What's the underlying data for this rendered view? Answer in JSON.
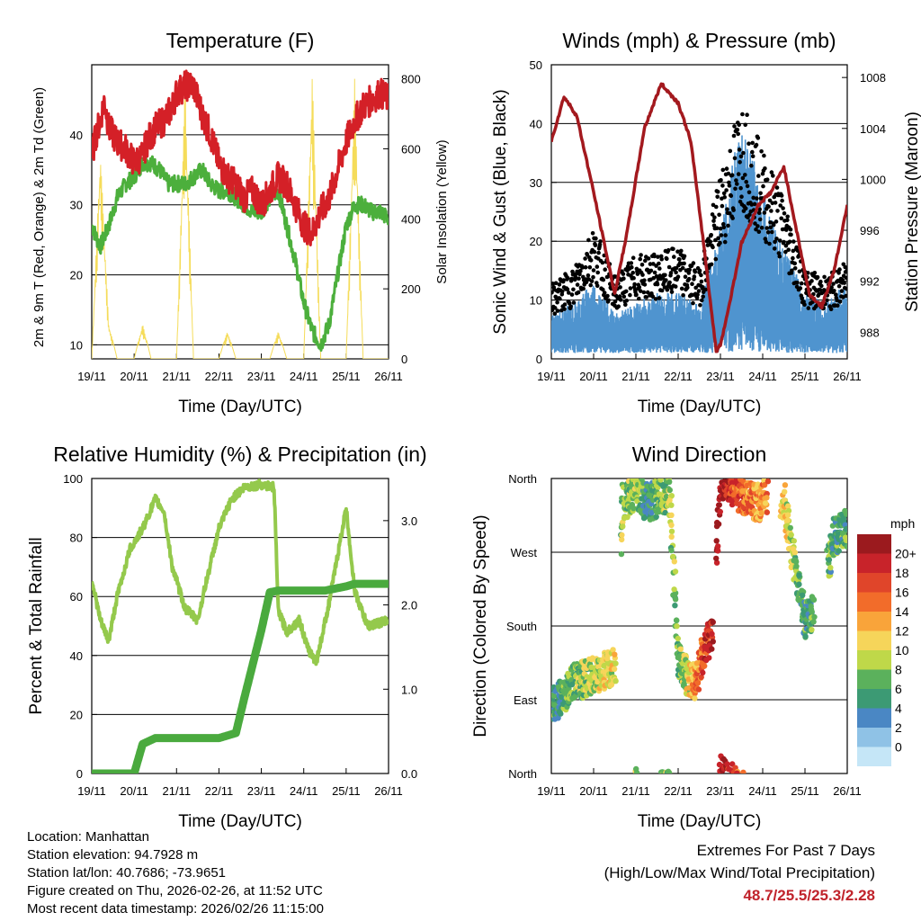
{
  "chart_data": [
    {
      "id": "temperature",
      "type": "line",
      "title": "Temperature (F)",
      "xlabel": "Time (Day/UTC)",
      "ylabel": "2m & 9m T (Red, Orange) & 2m Td (Green)",
      "y2label": "Solar Insolation (Yellow)",
      "x_ticks": [
        "19/11",
        "20/11",
        "21/11",
        "22/11",
        "23/11",
        "24/11",
        "25/11",
        "26/11"
      ],
      "ylim": [
        8,
        50
      ],
      "y_ticks": [
        10,
        20,
        30,
        40
      ],
      "y2lim": [
        0,
        840
      ],
      "y2_ticks": [
        0,
        200,
        400,
        600,
        800
      ],
      "colors": {
        "temp": "#d42027",
        "dewpoint": "#4caf3c",
        "solar": "#f5dc5a"
      },
      "series": [
        {
          "name": "2m/9m T",
          "color_key": "temp",
          "x": [
            0,
            0.1,
            0.2,
            0.3,
            0.4,
            0.5,
            0.6,
            0.8,
            1.0,
            1.2,
            1.3,
            1.5,
            1.7,
            1.9,
            2.0,
            2.2,
            2.4,
            2.6,
            2.8,
            3.0,
            3.2,
            3.4,
            3.6,
            3.8,
            4.0,
            4.2,
            4.4,
            4.6,
            4.8,
            5.0,
            5.2,
            5.4,
            5.6,
            5.8,
            6.0,
            6.2,
            6.4,
            6.6,
            6.8,
            7.0
          ],
          "values": [
            37,
            40,
            42,
            45,
            41,
            40,
            39,
            38,
            36,
            37,
            39,
            41,
            42,
            44,
            46,
            47,
            47,
            43,
            40,
            36,
            34,
            33,
            31,
            32,
            30,
            32,
            34,
            33,
            30,
            27,
            26,
            29,
            31,
            35,
            39,
            42,
            44,
            45,
            46,
            45
          ]
        },
        {
          "name": "2m Td",
          "color_key": "dewpoint",
          "x": [
            0,
            0.2,
            0.4,
            0.6,
            0.8,
            1.0,
            1.2,
            1.4,
            1.6,
            1.8,
            2.0,
            2.2,
            2.4,
            2.6,
            2.8,
            3.0,
            3.2,
            3.4,
            3.6,
            3.8,
            4.0,
            4.2,
            4.4,
            4.6,
            4.8,
            5.0,
            5.2,
            5.4,
            5.6,
            5.8,
            6.0,
            6.2,
            6.4,
            6.6,
            6.8,
            7.0
          ],
          "values": [
            27,
            24,
            27,
            31,
            33,
            34,
            36,
            36,
            35,
            33,
            33,
            33,
            34,
            35,
            33,
            32,
            32,
            31,
            30,
            29,
            29,
            31,
            32,
            27,
            22,
            16,
            12,
            10,
            13,
            20,
            27,
            30,
            30,
            29,
            29,
            28
          ]
        },
        {
          "name": "Solar Insolation",
          "color_key": "solar",
          "axis": "y2",
          "x": [
            0,
            0.2,
            0.4,
            0.6,
            0.8,
            1.0,
            1.2,
            1.4,
            1.6,
            1.8,
            2.0,
            2.2,
            2.4,
            2.6,
            2.8,
            3.0,
            3.2,
            3.4,
            3.6,
            3.8,
            4.0,
            4.2,
            4.4,
            4.6,
            4.8,
            5.0,
            5.2,
            5.4,
            5.6,
            5.8,
            6.0,
            6.2,
            6.4,
            6.6,
            6.8,
            7.0
          ],
          "values": [
            0,
            600,
            100,
            0,
            0,
            0,
            100,
            0,
            0,
            0,
            0,
            790,
            0,
            0,
            0,
            0,
            80,
            0,
            0,
            0,
            0,
            0,
            80,
            0,
            0,
            0,
            820,
            0,
            0,
            0,
            0,
            800,
            0,
            0,
            0,
            0
          ]
        }
      ]
    },
    {
      "id": "winds",
      "type": "scatter",
      "title": "Winds (mph) & Pressure (mb)",
      "xlabel": "Time (Day/UTC)",
      "ylabel": "Sonic Wind & Gust (Blue, Black)",
      "y2label": "Station Pressure (Maroon)",
      "x_ticks": [
        "19/11",
        "20/11",
        "21/11",
        "22/11",
        "23/11",
        "24/11",
        "25/11",
        "26/11"
      ],
      "ylim": [
        0,
        50
      ],
      "y_ticks": [
        0,
        10,
        20,
        30,
        40,
        50
      ],
      "y2lim": [
        985.9,
        1009.0
      ],
      "y2_ticks": [
        988,
        992,
        996,
        1000,
        1004,
        1008
      ],
      "colors": {
        "wind": "#4f94cf",
        "gust": "#000000",
        "pressure": "#a3191e"
      },
      "series": [
        {
          "name": "Sonic Wind",
          "color_key": "wind",
          "x": [
            0,
            0.5,
            1.0,
            1.5,
            2.0,
            2.5,
            3.0,
            3.5,
            4.0,
            4.5,
            5.0,
            5.5,
            6.0,
            6.5,
            7.0
          ],
          "values": [
            4,
            5,
            7,
            4,
            5,
            6,
            6,
            5,
            12,
            22,
            15,
            10,
            6,
            5,
            7
          ]
        },
        {
          "name": "Gust",
          "color_key": "gust",
          "x": [
            0,
            0.5,
            1.0,
            1.5,
            2.0,
            2.5,
            3.0,
            3.5,
            4.0,
            4.5,
            5.0,
            5.5,
            6.0,
            6.5,
            7.0
          ],
          "values": [
            10,
            12,
            18,
            11,
            14,
            14,
            15,
            12,
            25,
            35,
            28,
            22,
            12,
            11,
            13
          ]
        },
        {
          "name": "Station Pressure",
          "color_key": "pressure",
          "axis": "y2",
          "x": [
            0,
            0.3,
            0.6,
            1.0,
            1.5,
            1.8,
            2.2,
            2.6,
            3.0,
            3.3,
            3.6,
            3.9,
            4.0,
            4.2,
            4.5,
            4.9,
            5.2,
            5.5,
            5.8,
            6.1,
            6.4,
            6.7,
            7.0
          ],
          "values": [
            1003,
            1006.5,
            1005,
            999,
            991,
            996,
            1004,
            1007.5,
            1006,
            1003,
            995,
            986.5,
            987,
            990,
            995,
            998,
            999,
            1001,
            996,
            991,
            990,
            993,
            998
          ]
        }
      ]
    },
    {
      "id": "humidity",
      "type": "line",
      "title": "Relative Humidity (%) & Precipitation (in)",
      "xlabel": "Time (Day/UTC)",
      "ylabel": "Percent & Total Rainfall",
      "x_ticks": [
        "19/11",
        "20/11",
        "21/11",
        "22/11",
        "23/11",
        "24/11",
        "25/11",
        "26/11"
      ],
      "ylim": [
        0,
        100
      ],
      "y_ticks": [
        0,
        20,
        40,
        60,
        80,
        100
      ],
      "y2lim": [
        0,
        3.5
      ],
      "y2_ticks": [
        "0.0",
        "1.0",
        "2.0",
        "3.0"
      ],
      "colors": {
        "rh": "#94c94c",
        "precip": "#4aaa3e"
      },
      "series": [
        {
          "name": "Relative Humidity",
          "color_key": "rh",
          "x": [
            0,
            0.2,
            0.4,
            0.6,
            0.9,
            1.2,
            1.5,
            1.7,
            1.9,
            2.2,
            2.5,
            2.7,
            3.0,
            3.3,
            3.6,
            4.0,
            4.3,
            4.4,
            4.6,
            4.9,
            5.1,
            5.3,
            5.6,
            6.0,
            6.2,
            6.5,
            7.0
          ],
          "values": [
            66,
            52,
            45,
            60,
            76,
            83,
            93,
            89,
            70,
            56,
            52,
            65,
            83,
            93,
            97,
            98,
            97,
            55,
            48,
            52,
            42,
            38,
            58,
            90,
            62,
            50,
            52
          ]
        },
        {
          "name": "Total Precipitation",
          "color_key": "precip",
          "axis": "y2",
          "x": [
            0,
            1.0,
            1.2,
            1.5,
            2.0,
            3.0,
            3.4,
            3.6,
            3.8,
            4.0,
            4.2,
            4.4,
            5.0,
            5.5,
            6.0,
            6.2,
            7.0
          ],
          "values": [
            0,
            0,
            0.35,
            0.42,
            0.42,
            0.42,
            0.48,
            0.9,
            1.3,
            1.7,
            2.15,
            2.17,
            2.17,
            2.17,
            2.22,
            2.25,
            2.25
          ]
        }
      ]
    },
    {
      "id": "direction",
      "type": "scatter",
      "title": "Wind Direction",
      "xlabel": "Time (Day/UTC)",
      "ylabel": "Direction (Colored By Speed)",
      "x_ticks": [
        "19/11",
        "20/11",
        "21/11",
        "22/11",
        "23/11",
        "24/11",
        "25/11",
        "26/11"
      ],
      "y_ticks": [
        "North",
        "East",
        "South",
        "West",
        "North"
      ],
      "legend": {
        "title": "mph",
        "labels": [
          "20+",
          "18",
          "16",
          "14",
          "12",
          "10",
          "8",
          "6",
          "4",
          "2",
          "0"
        ],
        "colors": [
          "#9b1a1e",
          "#c8232a",
          "#e0452a",
          "#f26c2a",
          "#f9a43a",
          "#f6d55a",
          "#bfd849",
          "#5bb15c",
          "#3c9a74",
          "#4a87c4",
          "#8fc2e6",
          "#c5e6f7"
        ]
      },
      "series": [
        {
          "name": "Direction",
          "x": [
            0,
            0.5,
            1.0,
            1.5,
            1.7,
            2.0,
            2.3,
            2.6,
            2.8,
            3.0,
            3.2,
            3.4,
            3.6,
            3.8,
            4.0,
            4.3,
            4.6,
            4.9,
            5.2,
            5.5,
            5.9,
            6.0,
            6.2,
            6.4,
            6.7,
            7.0
          ],
          "values": [
            80,
            110,
            120,
            130,
            330,
            345,
            330,
            340,
            340,
            140,
            120,
            110,
            150,
            170,
            360,
            350,
            335,
            330,
            340,
            330,
            210,
            185,
            200,
            220,
            290,
            300
          ],
          "speeds": [
            4,
            6,
            8,
            10,
            6,
            8,
            4,
            6,
            8,
            6,
            8,
            12,
            16,
            20,
            20,
            16,
            14,
            12,
            14,
            10,
            6,
            4,
            6,
            8,
            4,
            6
          ]
        }
      ]
    }
  ],
  "info": {
    "location": "Location: Manhattan",
    "elevation": "Station elevation: 94.7928 m",
    "latlon": "Station lat/lon: 40.7686; -73.9651",
    "created": "Figure created on Thu, 2026-02-26, at 11:52 UTC",
    "recent": "Most recent data timestamp: 2026/02/26 11:15:00"
  },
  "extremes": {
    "title": "Extremes For Past 7 Days",
    "subtitle": "(High/Low/Max Wind/Total Precipitation)",
    "values": "48.7/25.5/25.3/2.28"
  }
}
